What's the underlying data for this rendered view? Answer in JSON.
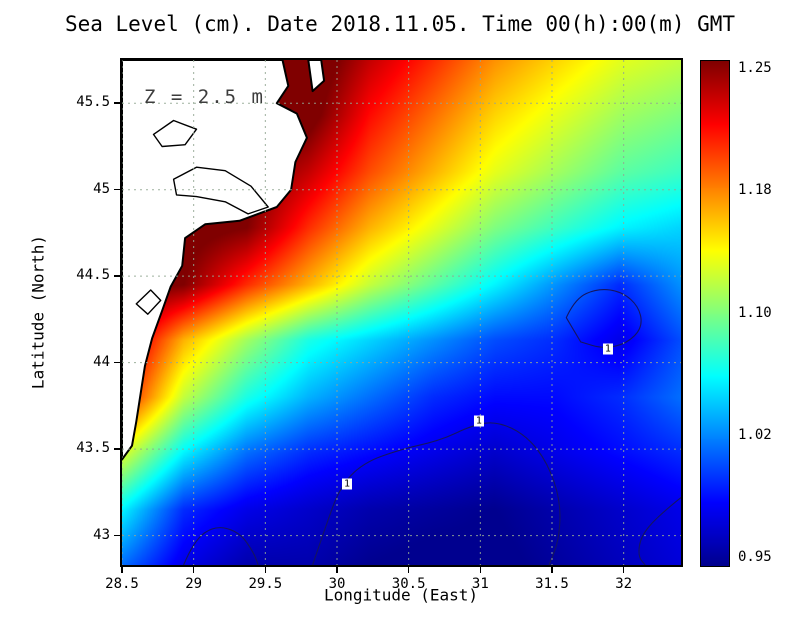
{
  "title": "Sea Level (cm). Date 2018.11.05. Time 00(h):00(m) GMT",
  "annotation": "Z = 2.5 m",
  "axes": {
    "xlabel": "Longitude (East)",
    "ylabel": "Latitude (North)",
    "xlim": [
      28.5,
      32.4
    ],
    "ylim": [
      42.83,
      45.75
    ],
    "x_ticks": [
      {
        "label": "28.5",
        "value": 28.5
      },
      {
        "label": "29",
        "value": 29
      },
      {
        "label": "29.5",
        "value": 29.5
      },
      {
        "label": "30",
        "value": 30
      },
      {
        "label": "30.5",
        "value": 30.5
      },
      {
        "label": "31",
        "value": 31
      },
      {
        "label": "31.5",
        "value": 31.5
      },
      {
        "label": "32",
        "value": 32
      }
    ],
    "y_ticks": [
      {
        "label": "43",
        "value": 43
      },
      {
        "label": "43.5",
        "value": 43.5
      },
      {
        "label": "44",
        "value": 44
      },
      {
        "label": "44.5",
        "value": 44.5
      },
      {
        "label": "45",
        "value": 45
      },
      {
        "label": "45.5",
        "value": 45.5
      }
    ]
  },
  "colorbar": {
    "min": 0.95,
    "max": 1.25,
    "labels": [
      "1.25",
      "1.18",
      "1.10",
      "1.02",
      "0.95"
    ],
    "colormap": [
      [
        0,
        "#00008F"
      ],
      [
        0.125,
        "#0000FF"
      ],
      [
        0.375,
        "#00FFFF"
      ],
      [
        0.625,
        "#FFFF00"
      ],
      [
        0.875,
        "#FF0000"
      ],
      [
        1,
        "#800000"
      ]
    ]
  },
  "chart_data": {
    "type": "heatmap",
    "title": "Sea Level (cm). Date 2018.11.05. Time 00(h):00(m) GMT",
    "xlabel": "Longitude (East)",
    "ylabel": "Latitude (North)",
    "xlim": [
      28.5,
      32.4
    ],
    "ylim": [
      42.83,
      45.75
    ],
    "value_range": [
      0.95,
      1.25
    ],
    "x": [
      28.5,
      28.93,
      29.37,
      29.8,
      30.23,
      30.67,
      31.1,
      31.53,
      31.97,
      32.4
    ],
    "y": [
      45.75,
      45.43,
      45.1,
      44.78,
      44.45,
      44.13,
      43.8,
      43.48,
      43.15,
      42.83
    ],
    "values": [
      [
        1.28,
        1.28,
        1.28,
        1.27,
        1.23,
        1.2,
        1.17,
        1.15,
        1.13,
        1.12
      ],
      [
        1.27,
        1.27,
        1.27,
        1.26,
        1.21,
        1.18,
        1.15,
        1.13,
        1.11,
        1.1
      ],
      [
        1.27,
        1.27,
        1.26,
        1.23,
        1.19,
        1.16,
        1.13,
        1.11,
        1.09,
        1.08
      ],
      [
        1.26,
        1.26,
        1.25,
        1.2,
        1.16,
        1.13,
        1.1,
        1.08,
        1.06,
        1.05
      ],
      [
        1.26,
        1.25,
        1.2,
        1.16,
        1.12,
        1.09,
        1.06,
        1.03,
        1.0,
        1.03
      ],
      [
        1.24,
        1.16,
        1.11,
        1.07,
        1.05,
        1.03,
        1.01,
        1.0,
        0.98,
        1.01
      ],
      [
        1.21,
        1.12,
        1.07,
        1.04,
        1.02,
        1.0,
        0.99,
        0.99,
        1.0,
        1.02
      ],
      [
        1.13,
        1.06,
        1.02,
        1.0,
        0.99,
        0.98,
        0.97,
        0.98,
        0.99,
        1.0
      ],
      [
        1.06,
        1.0,
        0.98,
        0.97,
        0.96,
        0.955,
        0.95,
        0.96,
        0.97,
        0.98
      ],
      [
        1.02,
        0.98,
        0.96,
        0.96,
        0.95,
        0.945,
        0.945,
        0.955,
        0.965,
        0.975
      ]
    ],
    "contour_level": 1,
    "contour_color": "#151560",
    "grid_color": "#93a793",
    "contours": [
      {
        "closed": true,
        "points": [
          [
            31.6,
            44.26
          ],
          [
            31.66,
            44.37
          ],
          [
            31.82,
            44.43
          ],
          [
            31.99,
            44.41
          ],
          [
            32.11,
            44.32
          ],
          [
            32.13,
            44.2
          ],
          [
            32.02,
            44.11
          ],
          [
            31.86,
            44.08
          ],
          [
            31.7,
            44.12
          ]
        ]
      },
      {
        "closed": false,
        "points": [
          [
            29.83,
            42.83
          ],
          [
            29.92,
            43.05
          ],
          [
            30.02,
            43.28
          ],
          [
            30.18,
            43.42
          ],
          [
            30.45,
            43.5
          ],
          [
            30.72,
            43.55
          ],
          [
            30.95,
            43.64
          ],
          [
            31.12,
            43.66
          ],
          [
            31.32,
            43.58
          ],
          [
            31.47,
            43.42
          ],
          [
            31.56,
            43.2
          ],
          [
            31.55,
            42.98
          ],
          [
            31.48,
            42.83
          ]
        ]
      },
      {
        "closed": false,
        "points": [
          [
            28.93,
            42.83
          ],
          [
            29.0,
            42.97
          ],
          [
            29.15,
            43.06
          ],
          [
            29.32,
            43.02
          ],
          [
            29.42,
            42.9
          ],
          [
            29.45,
            42.83
          ]
        ]
      },
      {
        "closed": false,
        "points": [
          [
            32.4,
            43.22
          ],
          [
            32.25,
            43.12
          ],
          [
            32.12,
            43.0
          ],
          [
            32.1,
            42.88
          ],
          [
            32.15,
            42.83
          ]
        ]
      }
    ],
    "contour_labels": [
      {
        "text": "1",
        "lon": 30.07,
        "lat": 43.3
      },
      {
        "text": "1",
        "lon": 30.99,
        "lat": 43.66
      },
      {
        "text": "1",
        "lon": 31.89,
        "lat": 44.08
      }
    ],
    "land": {
      "coast": [
        [
          28.5,
          45.75
        ],
        [
          29.62,
          45.75
        ],
        [
          29.66,
          45.6
        ],
        [
          29.58,
          45.5
        ],
        [
          29.72,
          45.44
        ],
        [
          29.79,
          45.3
        ],
        [
          29.71,
          45.16
        ],
        [
          29.68,
          45.0
        ],
        [
          29.58,
          44.9
        ],
        [
          29.32,
          44.82
        ],
        [
          29.08,
          44.8
        ],
        [
          28.94,
          44.72
        ],
        [
          28.92,
          44.56
        ],
        [
          28.84,
          44.44
        ],
        [
          28.78,
          44.3
        ],
        [
          28.71,
          44.14
        ],
        [
          28.66,
          43.98
        ],
        [
          28.63,
          43.82
        ],
        [
          28.6,
          43.66
        ],
        [
          28.57,
          43.52
        ],
        [
          28.5,
          43.44
        ]
      ],
      "spit": [
        [
          29.8,
          45.75
        ],
        [
          29.83,
          45.57
        ],
        [
          29.91,
          45.63
        ],
        [
          29.89,
          45.75
        ]
      ],
      "lakes": [
        [
          [
            28.86,
            45.06
          ],
          [
            29.02,
            45.13
          ],
          [
            29.22,
            45.11
          ],
          [
            29.4,
            45.02
          ],
          [
            29.52,
            44.9
          ],
          [
            29.38,
            44.86
          ],
          [
            29.22,
            44.93
          ],
          [
            29.02,
            44.96
          ],
          [
            28.88,
            44.97
          ]
        ],
        [
          [
            28.72,
            45.32
          ],
          [
            28.86,
            45.4
          ],
          [
            29.02,
            45.35
          ],
          [
            28.94,
            45.26
          ],
          [
            28.78,
            45.25
          ]
        ],
        [
          [
            28.6,
            44.34
          ],
          [
            28.7,
            44.42
          ],
          [
            28.77,
            44.36
          ],
          [
            28.68,
            44.28
          ]
        ]
      ]
    }
  }
}
